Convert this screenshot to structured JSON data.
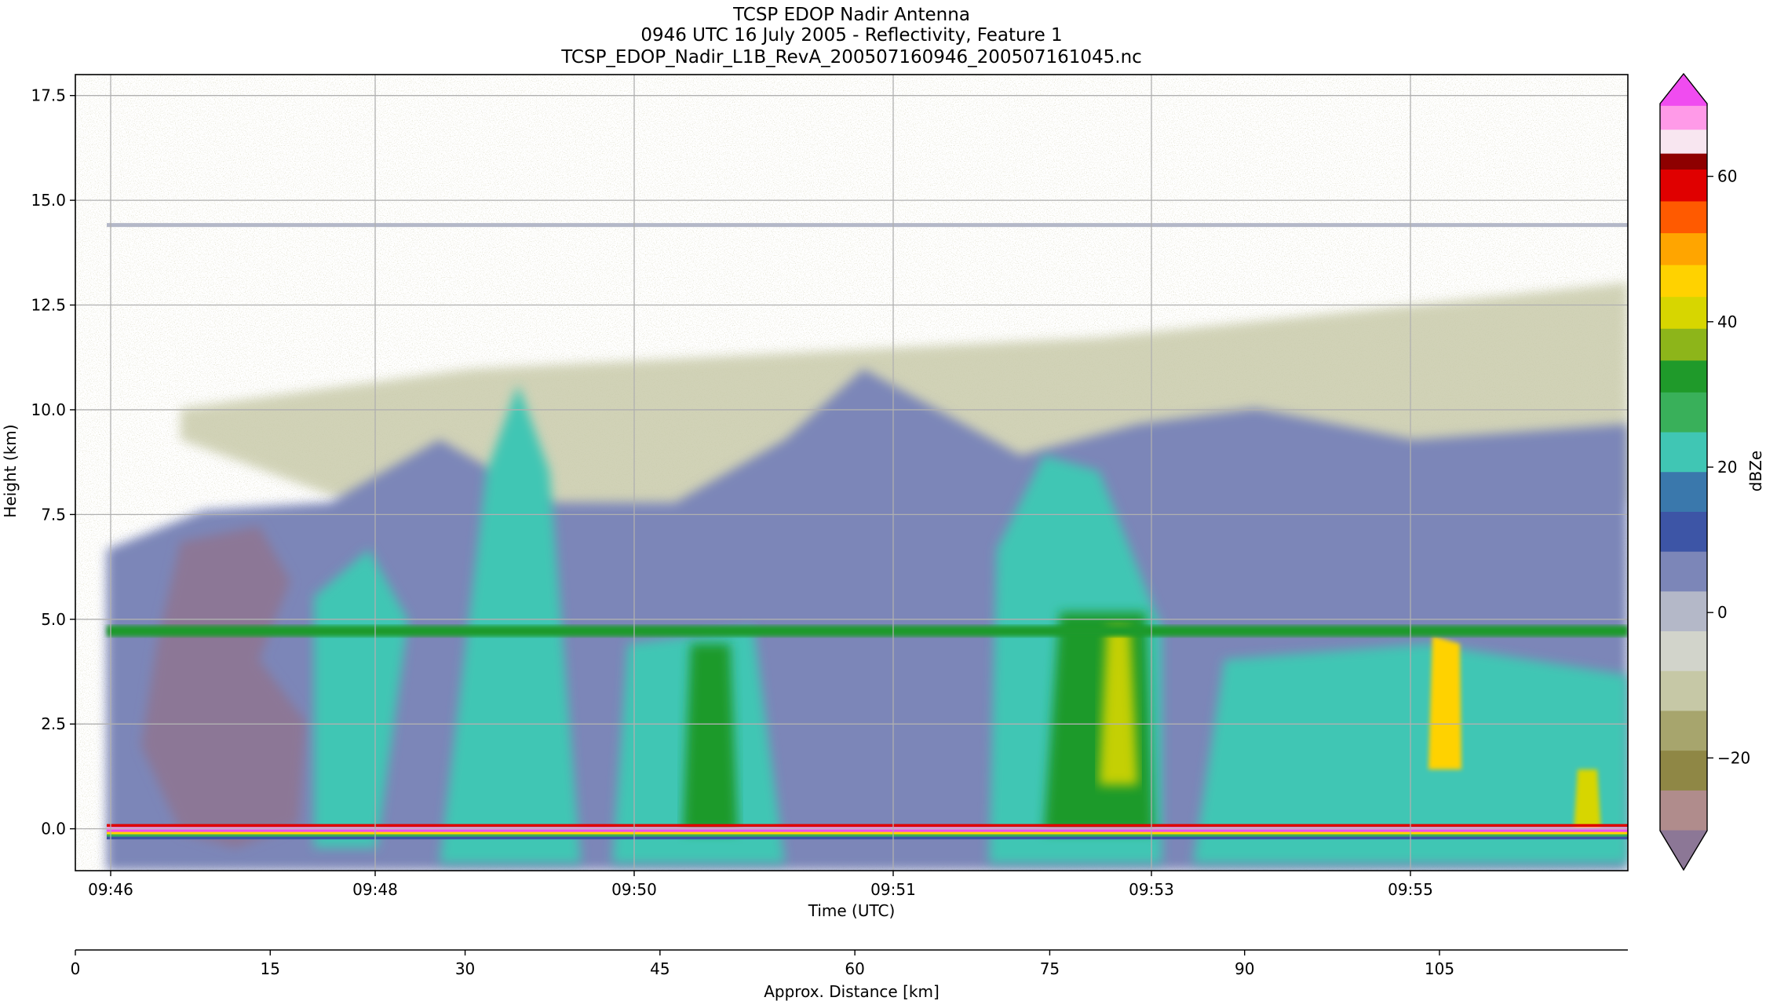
{
  "chart_data": {
    "type": "heatmap",
    "title_lines": [
      "TCSP EDOP Nadir Antenna",
      "0946 UTC 16 July 2005 - Reflectivity, Feature 1",
      "TCSP_EDOP_Nadir_L1B_RevA_200507160946_200507161045.nc"
    ],
    "xlabel": "Time (UTC)",
    "ylabel": "Height (km)",
    "x_ticks": [
      "09:46",
      "09:48",
      "09:50",
      "09:51",
      "09:53",
      "09:55"
    ],
    "y_ticks": [
      "0.0",
      "2.5",
      "5.0",
      "7.5",
      "10.0",
      "12.5",
      "15.0",
      "17.5"
    ],
    "ylim": [
      -1.0,
      18.0
    ],
    "grid": true,
    "distance_axis": {
      "label": "Approx. Distance [km]",
      "ticks": [
        "0",
        "15",
        "30",
        "45",
        "60",
        "75",
        "90",
        "105"
      ],
      "xlim": [
        0,
        119.5
      ]
    },
    "colorbar": {
      "label": "dBZe",
      "ticks": [
        "−20",
        "0",
        "20",
        "40",
        "60"
      ],
      "range": [
        -30,
        70
      ],
      "extend": "both",
      "colors": [
        [
          -30,
          "#8c7796"
        ],
        [
          -25,
          "#b08c8c"
        ],
        [
          -20,
          "#8f8745"
        ],
        [
          -15,
          "#a7a56d"
        ],
        [
          -10,
          "#c6c8a6"
        ],
        [
          -5,
          "#d2d4cb"
        ],
        [
          0,
          "#b4b8c8"
        ],
        [
          5,
          "#7c86b8"
        ],
        [
          10,
          "#3d55a6"
        ],
        [
          15,
          "#3a78ac"
        ],
        [
          20,
          "#40c6b4"
        ],
        [
          25,
          "#39b05a"
        ],
        [
          30,
          "#1f9a2a"
        ],
        [
          34,
          "#8db51a"
        ],
        [
          38,
          "#d7d600"
        ],
        [
          42,
          "#ffd200"
        ],
        [
          46,
          "#ffa500"
        ],
        [
          50,
          "#ff5a00"
        ],
        [
          54,
          "#e00000"
        ],
        [
          58,
          "#8e0000"
        ],
        [
          60,
          "#f8e6f0"
        ],
        [
          63,
          "#ff9ae8"
        ],
        [
          66,
          "#f04cf0"
        ],
        [
          70,
          "#b300ff"
        ]
      ]
    },
    "features": {
      "bright_band_km": 4.7,
      "tropopause_band_km": 14.4,
      "surface_km": 0.0
    }
  }
}
